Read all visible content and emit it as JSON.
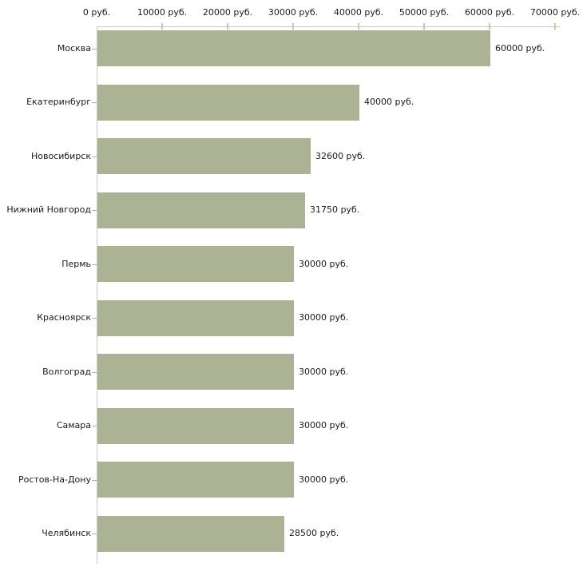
{
  "chart_data": {
    "type": "bar",
    "orientation": "horizontal",
    "title": "",
    "categories": [
      "Москва",
      "Екатеринбург",
      "Новосибирск",
      "Нижний Новгород",
      "Пермь",
      "Красноярск",
      "Волгоград",
      "Самара",
      "Ростов-На-Дону",
      "Челябинск"
    ],
    "values": [
      60000,
      40000,
      32600,
      31750,
      30000,
      30000,
      30000,
      30000,
      30000,
      28500
    ],
    "value_labels": [
      "60000 руб.",
      "40000 руб.",
      "32600 руб.",
      "31750 руб.",
      "30000 руб.",
      "30000 руб.",
      "30000 руб.",
      "30000 руб.",
      "30000 руб.",
      "28500 руб."
    ],
    "x_axis": {
      "position": "top",
      "tick_values": [
        0,
        10000,
        20000,
        30000,
        40000,
        50000,
        60000,
        70000
      ],
      "tick_labels": [
        "0 руб.",
        "10000 руб.",
        "20000 руб.",
        "30000 руб.",
        "40000 руб.",
        "50000 руб.",
        "60000 руб.",
        "70000 руб."
      ],
      "xlim": [
        0,
        70800
      ]
    },
    "grid": false,
    "legend": false,
    "colors": {
      "background": "#ffffff",
      "bar": "#acb294",
      "axis_line": "#c8c8c8",
      "axis_tick": "#cbcc9e",
      "category_tick": "#b0b0a6",
      "text": "#1a1a1a"
    }
  }
}
